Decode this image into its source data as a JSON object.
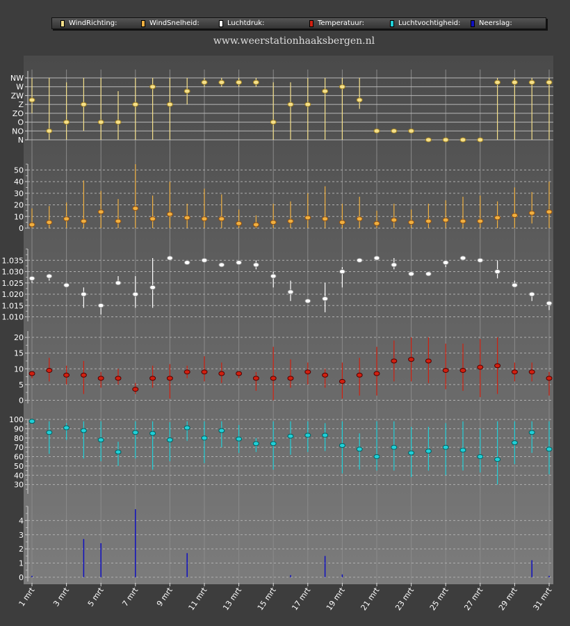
{
  "website": "www.weerstationhaaksbergen.nl",
  "legend": [
    {
      "label": "WindRichting:",
      "color": "#f5e08a"
    },
    {
      "label": "WindSnelheid:",
      "color": "#f0b040"
    },
    {
      "label": "Luchtdruk:",
      "color": "#ffffff"
    },
    {
      "label": "Temperatuur:",
      "color": "#d02010"
    },
    {
      "label": "Luchtvochtigheid:",
      "color": "#20d0d8"
    },
    {
      "label": "Neerslag:",
      "color": "#1010c0"
    }
  ],
  "chart_data": {
    "type": "multi-panel",
    "x_labels": [
      "1 mrt",
      "3 mrt",
      "5 mrt",
      "7 mrt",
      "9 mrt",
      "11 mrt",
      "13 mrt",
      "15 mrt",
      "17 mrt",
      "19 mrt",
      "21 mrt",
      "23 mrt",
      "25 mrt",
      "27 mrt",
      "29 mrt",
      "31 mrt"
    ],
    "days": 31,
    "panels": [
      {
        "name": "WindRichting",
        "color": "#f5e08a",
        "stroke": "#a08020",
        "ylim": [
          0,
          7
        ],
        "ticks": [
          {
            "v": 0,
            "label": "N"
          },
          {
            "v": 1,
            "label": "NO"
          },
          {
            "v": 2,
            "label": "O"
          },
          {
            "v": 3,
            "label": "ZO"
          },
          {
            "v": 4,
            "label": "Z"
          },
          {
            "v": 5,
            "label": "ZW"
          },
          {
            "v": 6,
            "label": "W"
          },
          {
            "v": 7,
            "label": "NW"
          }
        ],
        "values": [
          4.5,
          1,
          2,
          4,
          2,
          2,
          4,
          6,
          4,
          5.5,
          6.5,
          6.5,
          6.5,
          6.5,
          2,
          4,
          4,
          5.5,
          6,
          4.5,
          1,
          1,
          1,
          0,
          0,
          0,
          0,
          6.5,
          6.5,
          6.5,
          6.5
        ],
        "lows": [
          3,
          0,
          0,
          1,
          0,
          0,
          0,
          0,
          0,
          4,
          6,
          6,
          6,
          6,
          0,
          0,
          0,
          0,
          0,
          3.5,
          0,
          0,
          0,
          0,
          0,
          0,
          0,
          0,
          0,
          0,
          0
        ],
        "highs": [
          7,
          7,
          6.5,
          7,
          7,
          5.5,
          7,
          7,
          7,
          7,
          7,
          7,
          7,
          7,
          6.5,
          6.5,
          7,
          7,
          7,
          7,
          0,
          0,
          0,
          0,
          0,
          0,
          0,
          7,
          7,
          7,
          7
        ]
      },
      {
        "name": "WindSnelheid",
        "color": "#f0b040",
        "stroke": "#905010",
        "ylim": [
          0,
          55
        ],
        "ticks": [
          {
            "v": 0,
            "label": "0"
          },
          {
            "v": 10,
            "label": "10"
          },
          {
            "v": 20,
            "label": "20"
          },
          {
            "v": 30,
            "label": "30"
          },
          {
            "v": 40,
            "label": "40"
          },
          {
            "v": 50,
            "label": "50"
          }
        ],
        "values": [
          3,
          5,
          8,
          6,
          14,
          6,
          17,
          8,
          12,
          9,
          8,
          8,
          4,
          3,
          5,
          6,
          9,
          8,
          5,
          8,
          4,
          7,
          5,
          6,
          7,
          6,
          6,
          9,
          11,
          13,
          14
        ],
        "lows": [
          0,
          0,
          0,
          0,
          0,
          0,
          0,
          0,
          0,
          0,
          0,
          0,
          0,
          0,
          0,
          0,
          0,
          0,
          0,
          0,
          0,
          0,
          0,
          0,
          0,
          0,
          0,
          0,
          0,
          4,
          0
        ],
        "highs": [
          17,
          19,
          22,
          41,
          32,
          25,
          55,
          28,
          40,
          21,
          34,
          29,
          16,
          11,
          21,
          23,
          30,
          36,
          21,
          27,
          15,
          21,
          16,
          21,
          24,
          27,
          28,
          23,
          35,
          31,
          40
        ]
      },
      {
        "name": "Luchtdruk",
        "color": "#ffffff",
        "stroke": "#808080",
        "ylim": [
          1.008,
          1.04
        ],
        "ticks": [
          {
            "v": 1.01,
            "label": "1.010"
          },
          {
            "v": 1.015,
            "label": "1.015"
          },
          {
            "v": 1.02,
            "label": "1.020"
          },
          {
            "v": 1.025,
            "label": "1.025"
          },
          {
            "v": 1.03,
            "label": "1.030"
          },
          {
            "v": 1.035,
            "label": "1.035"
          }
        ],
        "values": [
          1.027,
          1.028,
          1.024,
          1.02,
          1.015,
          1.025,
          1.02,
          1.023,
          1.036,
          1.034,
          1.035,
          1.033,
          1.034,
          1.033,
          1.028,
          1.021,
          1.017,
          1.018,
          1.03,
          1.035,
          1.036,
          1.033,
          1.029,
          1.029,
          1.034,
          1.036,
          1.035,
          1.03,
          1.024,
          1.02,
          1.016
        ],
        "lows": [
          1.025,
          1.026,
          1.023,
          1.014,
          1.011,
          1.024,
          1.014,
          1.014,
          1.035,
          1.033,
          1.034,
          1.032,
          1.033,
          1.031,
          1.023,
          1.017,
          1.016,
          1.012,
          1.023,
          1.034,
          1.035,
          1.031,
          1.028,
          1.028,
          1.032,
          1.035,
          1.034,
          1.027,
          1.023,
          1.017,
          1.013
        ],
        "highs": [
          1.028,
          1.029,
          1.025,
          1.023,
          1.016,
          1.028,
          1.028,
          1.036,
          1.037,
          1.035,
          1.036,
          1.034,
          1.035,
          1.035,
          1.03,
          1.026,
          1.018,
          1.025,
          1.032,
          1.036,
          1.037,
          1.036,
          1.03,
          1.03,
          1.035,
          1.037,
          1.036,
          1.035,
          1.026,
          1.021,
          1.017
        ]
      },
      {
        "name": "Temperatuur",
        "color": "#d02010",
        "stroke": "#500000",
        "ylim": [
          -1,
          22
        ],
        "ticks": [
          {
            "v": 0,
            "label": "0"
          },
          {
            "v": 5,
            "label": "5"
          },
          {
            "v": 10,
            "label": "10"
          },
          {
            "v": 15,
            "label": "15"
          },
          {
            "v": 20,
            "label": "20"
          }
        ],
        "values": [
          8.5,
          9.5,
          8,
          8,
          7,
          7,
          3.5,
          7,
          7,
          9,
          9,
          8.5,
          8.5,
          7,
          7,
          7,
          9,
          8,
          6,
          8,
          8.5,
          12.5,
          13,
          12.5,
          9.5,
          9.5,
          10.5,
          11,
          9,
          9,
          7
        ],
        "lows": [
          7,
          6,
          5,
          2,
          4,
          5,
          2,
          4,
          0.5,
          7,
          6,
          5.5,
          7,
          3,
          0,
          4,
          5,
          4,
          0.5,
          1.5,
          1.5,
          6,
          6,
          5.5,
          3.5,
          3,
          1,
          2,
          6,
          6,
          1.5
        ],
        "highs": [
          9,
          13.5,
          11,
          12.5,
          9,
          10,
          5.5,
          11,
          11.5,
          11,
          14,
          12,
          9,
          9,
          17,
          13,
          12,
          10,
          12,
          13.5,
          17,
          19,
          20,
          20,
          18,
          18,
          19.5,
          20,
          12,
          12,
          9
        ]
      },
      {
        "name": "Luchtvochtigheid",
        "color": "#20d0d8",
        "stroke": "#006060",
        "ylim": [
          20,
          100
        ],
        "ticks": [
          {
            "v": 30,
            "label": "30"
          },
          {
            "v": 40,
            "label": "40"
          },
          {
            "v": 50,
            "label": "50"
          },
          {
            "v": 60,
            "label": "60"
          },
          {
            "v": 70,
            "label": "70"
          },
          {
            "v": 80,
            "label": "80"
          },
          {
            "v": 90,
            "label": "90"
          },
          {
            "v": 100,
            "label": "100"
          }
        ],
        "values": [
          98,
          86,
          91,
          88,
          78,
          65,
          86,
          85,
          78,
          91,
          80,
          88,
          79,
          74,
          74,
          82,
          83,
          83,
          72,
          68,
          60,
          70,
          64,
          66,
          70,
          67,
          60,
          57,
          75,
          86,
          68
        ],
        "lows": [
          96,
          63,
          78,
          58,
          55,
          50,
          58,
          46,
          55,
          77,
          53,
          70,
          64,
          65,
          46,
          62,
          65,
          66,
          42,
          46,
          45,
          45,
          38,
          45,
          40,
          45,
          43,
          30,
          52,
          64,
          41
        ],
        "highs": [
          100,
          98,
          96,
          98,
          98,
          76,
          98,
          98,
          97,
          98,
          98,
          98,
          94,
          80,
          98,
          98,
          98,
          96,
          98,
          85,
          98,
          98,
          92,
          92,
          96,
          98,
          90,
          98,
          98,
          98,
          98
        ]
      },
      {
        "name": "Neerslag",
        "color": "#1010c0",
        "stroke": "#000060",
        "ylim": [
          -0.3,
          5
        ],
        "ticks": [
          {
            "v": 0,
            "label": "0"
          },
          {
            "v": 1,
            "label": "1"
          },
          {
            "v": 2,
            "label": "2"
          },
          {
            "v": 3,
            "label": "3"
          },
          {
            "v": 4,
            "label": "4"
          }
        ],
        "values": [
          0.1,
          0,
          0,
          2.7,
          2.4,
          0,
          4.8,
          0,
          0,
          1.7,
          0,
          0,
          0,
          0,
          0,
          0.15,
          0,
          1.5,
          0.2,
          0,
          0,
          0,
          0,
          0,
          0,
          0,
          0,
          0,
          0,
          1.2,
          0.1
        ]
      }
    ]
  }
}
